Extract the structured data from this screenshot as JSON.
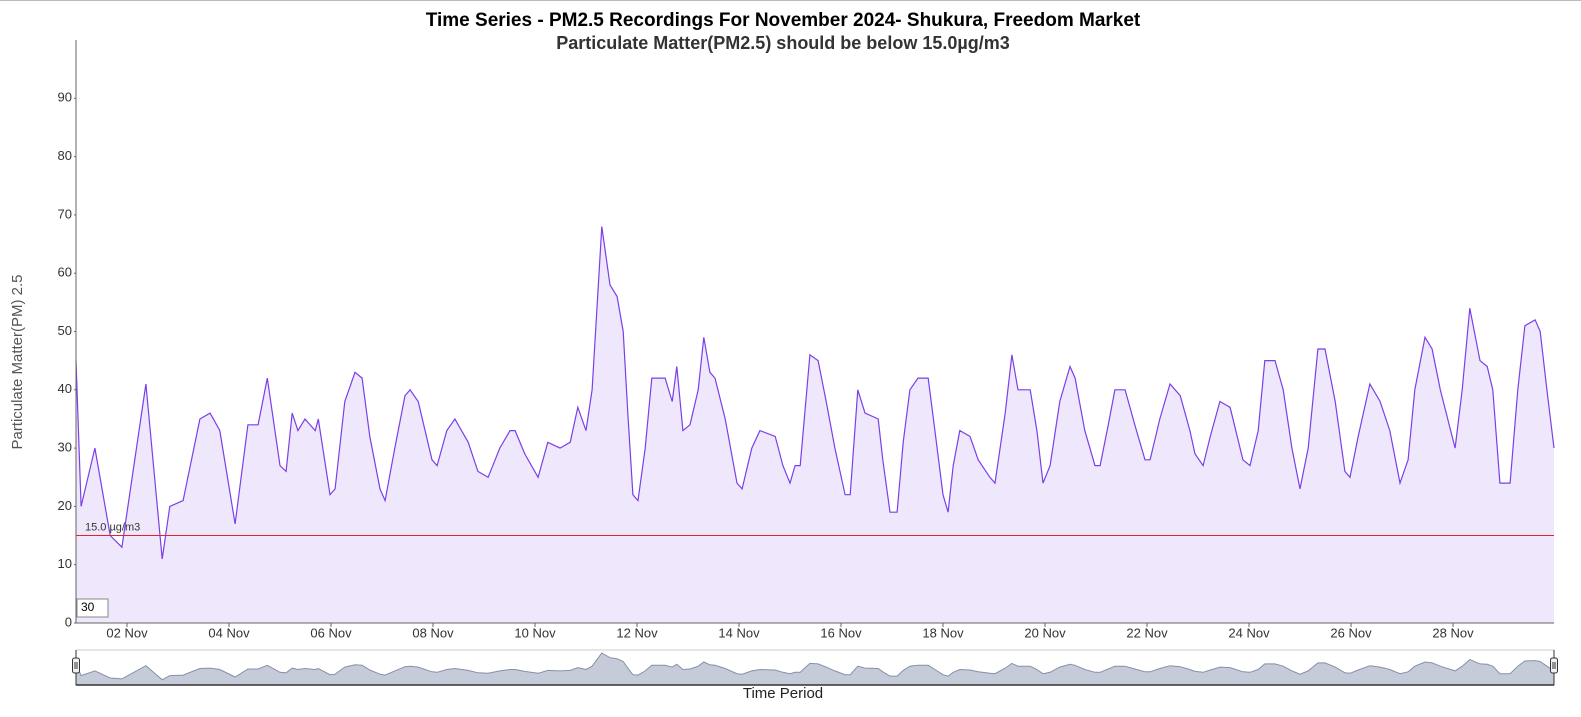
{
  "chart_data": {
    "type": "area",
    "title": "Time Series - PM2.5 Recordings For November 2024- Shukura, Freedom Market",
    "subtitle": "Particulate Matter(PM2.5) should be below 15.0µg/m3",
    "y_label": "Particulate Matter(PM) 2.5",
    "x_label": "Time Period",
    "color": "#7b3fe8",
    "fill": "#efe8fc",
    "threshold": {
      "value": 15,
      "label": "15.0 µg/m3",
      "color": "#e8202a"
    },
    "range_box": "30",
    "xlim": [
      1,
      29.98
    ],
    "ylim": [
      0,
      100
    ],
    "xticks": [
      {
        "value": 2,
        "label": "02 Nov"
      },
      {
        "value": 4,
        "label": "04 Nov"
      },
      {
        "value": 6,
        "label": "06 Nov"
      },
      {
        "value": 8,
        "label": "08 Nov"
      },
      {
        "value": 10,
        "label": "10 Nov"
      },
      {
        "value": 12,
        "label": "12 Nov"
      },
      {
        "value": 14,
        "label": "14 Nov"
      },
      {
        "value": 16,
        "label": "16 Nov"
      },
      {
        "value": 18,
        "label": "18 Nov"
      },
      {
        "value": 20,
        "label": "20 Nov"
      },
      {
        "value": 22,
        "label": "22 Nov"
      },
      {
        "value": 24,
        "label": "24 Nov"
      },
      {
        "value": 26,
        "label": "26 Nov"
      },
      {
        "value": 28,
        "label": "28 Nov"
      }
    ],
    "yticks": [
      0,
      10,
      20,
      30,
      40,
      50,
      60,
      70,
      80,
      90
    ],
    "x": [
      1.0,
      1.1,
      1.37,
      1.67,
      1.9,
      2.37,
      2.69,
      2.84,
      3.1,
      3.43,
      3.63,
      3.82,
      4.12,
      4.37,
      4.57,
      4.75,
      5.0,
      5.12,
      5.24,
      5.35,
      5.49,
      5.69,
      5.75,
      5.98,
      6.08,
      6.27,
      6.47,
      6.61,
      6.76,
      6.96,
      7.06,
      7.25,
      7.45,
      7.55,
      7.71,
      7.98,
      8.08,
      8.27,
      8.43,
      8.69,
      8.88,
      9.08,
      9.31,
      9.51,
      9.61,
      9.8,
      10.06,
      10.25,
      10.49,
      10.69,
      10.84,
      11.0,
      11.12,
      11.31,
      11.47,
      11.61,
      11.73,
      11.82,
      11.92,
      12.02,
      12.16,
      12.29,
      12.55,
      12.69,
      12.78,
      12.9,
      13.04,
      13.2,
      13.31,
      13.43,
      13.53,
      13.73,
      13.96,
      14.06,
      14.25,
      14.41,
      14.71,
      14.86,
      15.0,
      15.1,
      15.2,
      15.39,
      15.55,
      15.71,
      15.88,
      16.08,
      16.18,
      16.33,
      16.47,
      16.73,
      16.82,
      16.96,
      17.1,
      17.22,
      17.35,
      17.51,
      17.71,
      17.84,
      18.0,
      18.1,
      18.2,
      18.33,
      18.53,
      18.69,
      18.92,
      19.02,
      19.22,
      19.35,
      19.47,
      19.71,
      19.84,
      19.96,
      20.1,
      20.29,
      20.49,
      20.59,
      20.78,
      20.98,
      21.08,
      21.24,
      21.37,
      21.57,
      21.76,
      21.96,
      22.06,
      22.25,
      22.45,
      22.65,
      22.84,
      22.94,
      23.1,
      23.24,
      23.43,
      23.63,
      23.88,
      24.02,
      24.18,
      24.31,
      24.51,
      24.67,
      24.84,
      25.0,
      25.16,
      25.35,
      25.49,
      25.69,
      25.88,
      25.98,
      26.14,
      26.37,
      26.57,
      26.76,
      26.96,
      27.12,
      27.25,
      27.45,
      27.59,
      27.75,
      28.04,
      28.18,
      28.33,
      28.53,
      28.67,
      28.78,
      28.92,
      29.12,
      29.27,
      29.41,
      29.61,
      29.71,
      29.84,
      29.98
    ],
    "values": [
      45,
      20,
      30,
      15,
      13,
      41,
      11,
      20,
      21,
      35,
      36,
      33,
      17,
      34,
      34,
      42,
      27,
      26,
      36,
      33,
      35,
      33,
      35,
      22,
      23,
      38,
      43,
      42,
      32,
      23,
      21,
      30,
      39,
      40,
      38,
      28,
      27,
      33,
      35,
      31,
      26,
      25,
      30,
      33,
      33,
      29,
      25,
      31,
      30,
      31,
      37,
      33,
      40,
      68,
      58,
      56,
      50,
      36,
      22,
      21,
      30,
      42,
      42,
      38,
      44,
      33,
      34,
      40,
      49,
      43,
      42,
      35,
      24,
      23,
      30,
      33,
      32,
      27,
      24,
      27,
      27,
      46,
      45,
      38,
      30,
      22,
      22,
      40,
      36,
      35,
      28,
      19,
      19,
      31,
      40,
      42,
      42,
      33,
      22,
      19,
      27,
      33,
      32,
      28,
      25,
      24,
      36,
      46,
      40,
      40,
      33,
      24,
      27,
      38,
      44,
      42,
      33,
      27,
      27,
      34,
      40,
      40,
      34,
      28,
      28,
      35,
      41,
      39,
      33,
      29,
      27,
      32,
      38,
      37,
      28,
      27,
      33,
      45,
      45,
      40,
      30,
      23,
      30,
      47,
      47,
      38,
      26,
      25,
      32,
      41,
      38,
      33,
      24,
      28,
      40,
      49,
      47,
      40,
      30,
      40,
      54,
      45,
      44,
      40,
      24,
      24,
      40,
      51,
      52,
      50,
      40,
      30
    ]
  }
}
